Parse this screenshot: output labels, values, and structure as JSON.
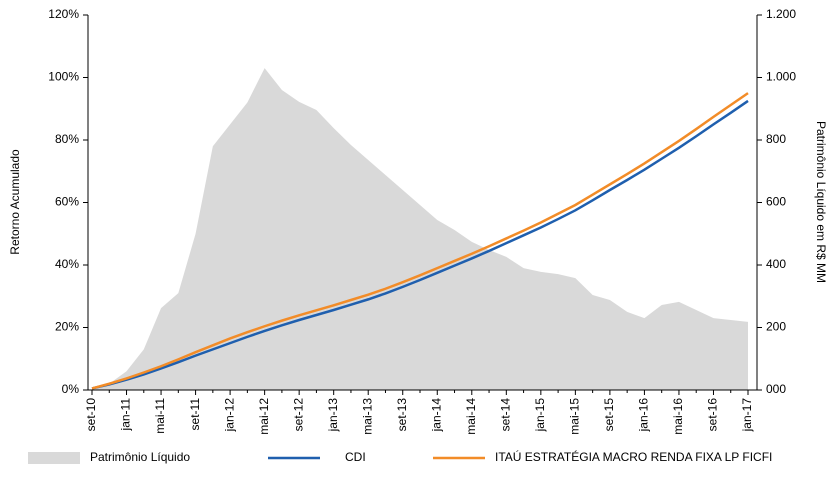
{
  "chart_data": {
    "type": "line",
    "y_label": "Retorno Acumulado",
    "y2_label": "Patrimônio Líquido em R$ MM",
    "categories": [
      "set-10",
      null,
      "jan-11",
      null,
      "mai-11",
      null,
      "set-11",
      null,
      "jan-12",
      null,
      "mai-12",
      null,
      "set-12",
      null,
      "jan-13",
      null,
      "mai-13",
      null,
      "set-13",
      null,
      "jan-14",
      null,
      "mai-14",
      null,
      "set-14",
      null,
      "jan-15",
      null,
      "mai-15",
      null,
      "set-15",
      null,
      "jan-16",
      null,
      "mai-16",
      null,
      "set-16",
      null,
      "jan-17"
    ],
    "series": [
      {
        "name": "Patrimônio Líquido",
        "type": "area",
        "axis": "y2",
        "color": "#d9d9d9",
        "values": [
          0,
          20,
          60,
          130,
          262,
          310,
          500,
          780,
          850,
          920,
          1030,
          960,
          922,
          896,
          838,
          784,
          736,
          688,
          640,
          592,
          544,
          512,
          474,
          448,
          426,
          390,
          378,
          371,
          358,
          304,
          288,
          250,
          230,
          272,
          282,
          256,
          230,
          224,
          218
        ]
      },
      {
        "name": "CDI",
        "color": "#1f5fae",
        "values": [
          0.5,
          1.8,
          3.3,
          5.0,
          6.9,
          8.9,
          11.0,
          13.0,
          15.0,
          17.0,
          18.9,
          20.7,
          22.4,
          24.0,
          25.6,
          27.3,
          29.0,
          30.9,
          33.0,
          35.2,
          37.5,
          39.8,
          42.1,
          44.5,
          47.0,
          49.5,
          52.0,
          54.7,
          57.5,
          60.7,
          64.0,
          67.2,
          70.5,
          74.0,
          77.5,
          81.2,
          85.0,
          88.7,
          92.5
        ]
      },
      {
        "name": "ITAÚ ESTRATÉGIA MACRO RENDA FIXA LP FICFI",
        "color": "#f28c28",
        "values": [
          0.5,
          2.0,
          3.7,
          5.6,
          7.6,
          9.8,
          12.1,
          14.3,
          16.5,
          18.5,
          20.4,
          22.2,
          23.9,
          25.5,
          27.1,
          28.8,
          30.5,
          32.4,
          34.5,
          36.7,
          39.0,
          41.3,
          43.6,
          46.0,
          48.5,
          51.0,
          53.6,
          56.4,
          59.2,
          62.5,
          65.8,
          69.1,
          72.5,
          76.1,
          79.7,
          83.5,
          87.4,
          91.2,
          95.0
        ]
      }
    ],
    "ylim": [
      0,
      120
    ],
    "yticks": [
      {
        "value": 0,
        "label": "0%"
      },
      {
        "value": 20,
        "label": "20%"
      },
      {
        "value": 40,
        "label": "40%"
      },
      {
        "value": 60,
        "label": "60%"
      },
      {
        "value": 80,
        "label": "80%"
      },
      {
        "value": 100,
        "label": "100%"
      },
      {
        "value": 120,
        "label": "120%"
      }
    ],
    "y2lim": [
      0,
      1200
    ],
    "y2ticks": [
      {
        "value": 0,
        "label": "000"
      },
      200,
      400,
      600,
      800,
      {
        "value": 1000,
        "label": "1.000"
      },
      {
        "value": 1200,
        "label": "1.200"
      }
    ],
    "grid": false,
    "legend": "bottom"
  }
}
